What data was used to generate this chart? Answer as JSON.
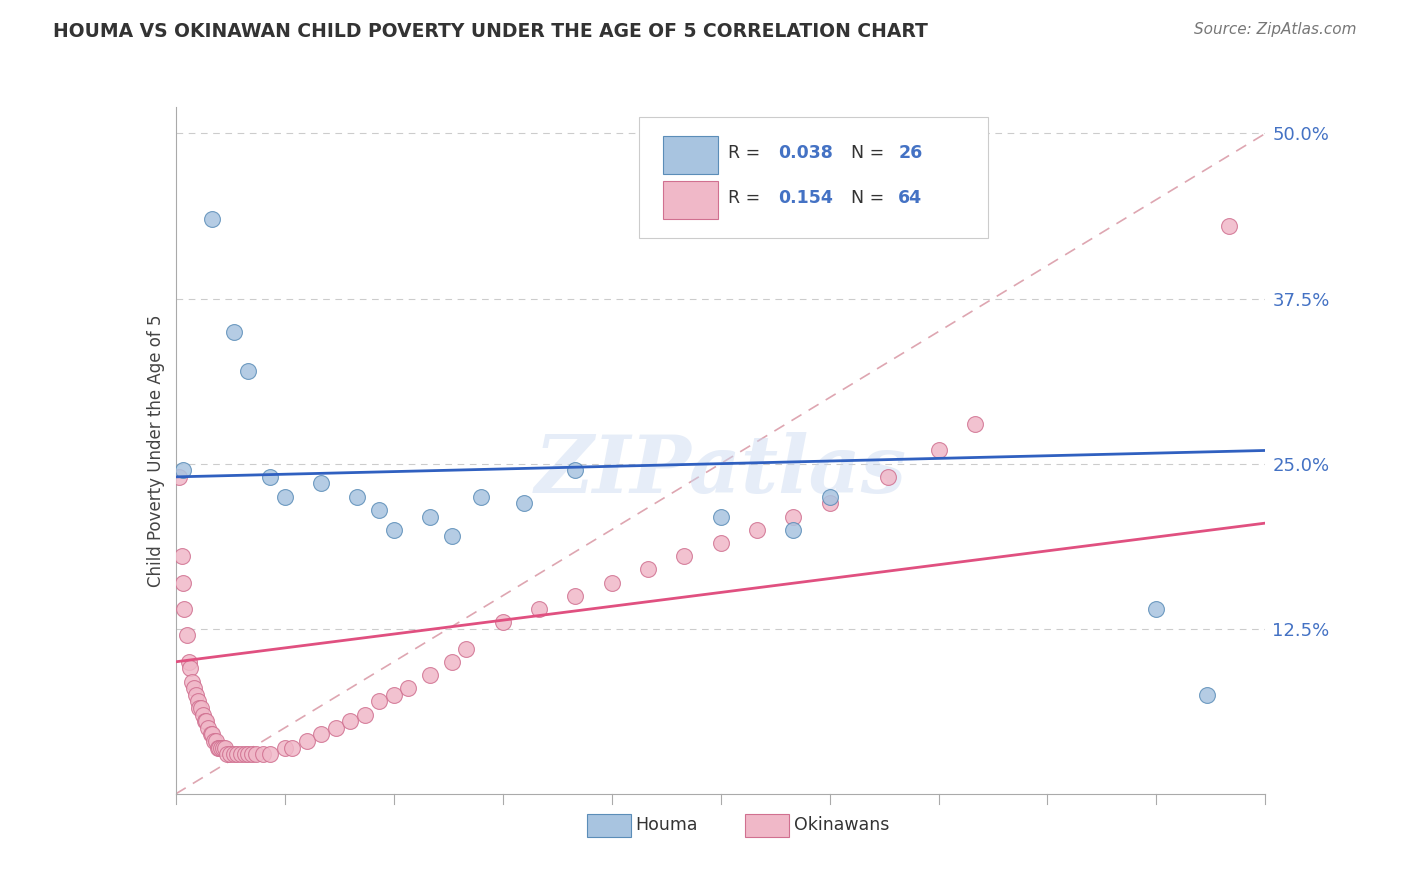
{
  "title": "HOUMA VS OKINAWAN CHILD POVERTY UNDER THE AGE OF 5 CORRELATION CHART",
  "source": "Source: ZipAtlas.com",
  "ylabel": "Child Poverty Under the Age of 5",
  "yticks": [
    0.0,
    12.5,
    25.0,
    37.5,
    50.0
  ],
  "ytick_labels": [
    "",
    "12.5%",
    "25.0%",
    "37.5%",
    "50.0%"
  ],
  "xmin": 0.0,
  "xmax": 15.0,
  "ymin": 0.0,
  "ymax": 52.0,
  "houma_color": "#a8c4e0",
  "houma_edge": "#5b8db8",
  "okinawan_color": "#f0b8c8",
  "okinawan_edge": "#d07090",
  "houma_line_color": "#3060c0",
  "okinawan_line_color": "#e05080",
  "diag_line_color": "#d08090",
  "watermark": "ZIPatlas",
  "houma_x": [
    0.1,
    0.5,
    0.8,
    1.0,
    1.3,
    1.5,
    2.0,
    2.5,
    2.8,
    3.0,
    3.5,
    3.8,
    4.2,
    4.8,
    5.5,
    7.5,
    8.5,
    9.0,
    13.5,
    14.2
  ],
  "houma_y": [
    24.5,
    43.5,
    35.0,
    32.0,
    24.0,
    22.5,
    23.5,
    22.5,
    21.5,
    20.0,
    21.0,
    19.5,
    22.5,
    22.0,
    24.5,
    21.0,
    20.0,
    22.5,
    14.0,
    7.5
  ],
  "okinawan_x": [
    0.05,
    0.08,
    0.1,
    0.12,
    0.15,
    0.18,
    0.2,
    0.22,
    0.25,
    0.28,
    0.3,
    0.32,
    0.35,
    0.38,
    0.4,
    0.42,
    0.45,
    0.48,
    0.5,
    0.52,
    0.55,
    0.58,
    0.6,
    0.62,
    0.65,
    0.68,
    0.7,
    0.75,
    0.8,
    0.85,
    0.9,
    0.95,
    1.0,
    1.05,
    1.1,
    1.2,
    1.3,
    1.5,
    1.6,
    1.8,
    2.0,
    2.2,
    2.4,
    2.6,
    2.8,
    3.0,
    3.2,
    3.5,
    3.8,
    4.0,
    4.5,
    5.0,
    5.5,
    6.0,
    6.5,
    7.0,
    7.5,
    8.0,
    8.5,
    9.0,
    9.8,
    10.5,
    11.0,
    14.5
  ],
  "okinawan_y": [
    24.0,
    18.0,
    16.0,
    14.0,
    12.0,
    10.0,
    9.5,
    8.5,
    8.0,
    7.5,
    7.0,
    6.5,
    6.5,
    6.0,
    5.5,
    5.5,
    5.0,
    4.5,
    4.5,
    4.0,
    4.0,
    3.5,
    3.5,
    3.5,
    3.5,
    3.5,
    3.0,
    3.0,
    3.0,
    3.0,
    3.0,
    3.0,
    3.0,
    3.0,
    3.0,
    3.0,
    3.0,
    3.5,
    3.5,
    4.0,
    4.5,
    5.0,
    5.5,
    6.0,
    7.0,
    7.5,
    8.0,
    9.0,
    10.0,
    11.0,
    13.0,
    14.0,
    15.0,
    16.0,
    17.0,
    18.0,
    19.0,
    20.0,
    21.0,
    22.0,
    24.0,
    26.0,
    28.0,
    43.0
  ],
  "houma_line_y0": 24.0,
  "houma_line_y1": 26.0,
  "okinawan_line_y0": 10.0,
  "okinawan_line_y1": 20.5,
  "diag_line_x0": 0.0,
  "diag_line_y0": 0.0,
  "diag_line_x1": 15.0,
  "diag_line_y1": 50.0
}
